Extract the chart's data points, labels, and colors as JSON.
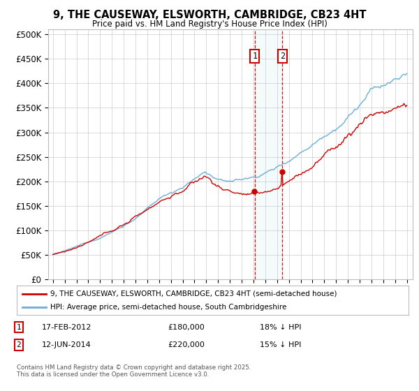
{
  "title": "9, THE CAUSEWAY, ELSWORTH, CAMBRIDGE, CB23 4HT",
  "subtitle": "Price paid vs. HM Land Registry's House Price Index (HPI)",
  "legend_line1": "9, THE CAUSEWAY, ELSWORTH, CAMBRIDGE, CB23 4HT (semi-detached house)",
  "legend_line2": "HPI: Average price, semi-detached house, South Cambridgeshire",
  "sale1_date": "17-FEB-2012",
  "sale1_price": 180000,
  "sale1_label": "18% ↓ HPI",
  "sale2_date": "12-JUN-2014",
  "sale2_price": 220000,
  "sale2_label": "15% ↓ HPI",
  "sale1_x": 2012.12,
  "sale2_x": 2014.45,
  "hpi_color": "#6baed6",
  "price_color": "#cc0000",
  "ylim_min": 0,
  "ylim_max": 510000,
  "yticks": [
    0,
    50000,
    100000,
    150000,
    200000,
    250000,
    300000,
    350000,
    400000,
    450000,
    500000
  ],
  "background_color": "#ffffff",
  "grid_color": "#cccccc",
  "footer": "Contains HM Land Registry data © Crown copyright and database right 2025.\nThis data is licensed under the Open Government Licence v3.0."
}
